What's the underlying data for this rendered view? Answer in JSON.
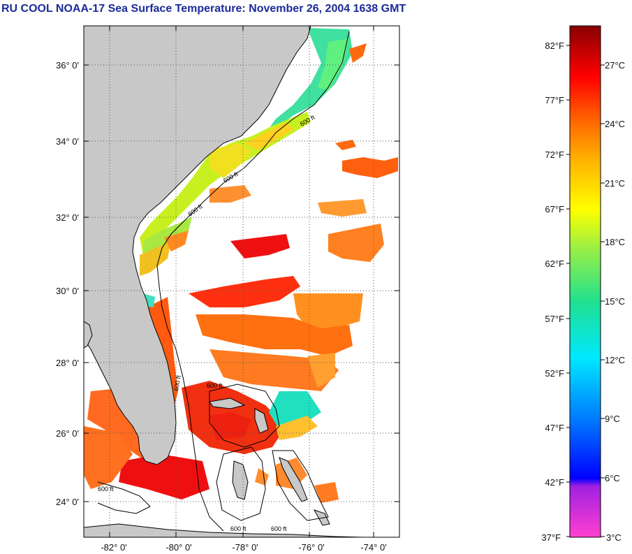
{
  "title": "RU COOL  NOAA-17  Sea Surface Temperature:  November 26, 2004 1638 GMT",
  "map": {
    "lat_labels": [
      "36° 0'",
      "34° 0'",
      "32° 0'",
      "30° 0'",
      "28° 0'",
      "26° 0'",
      "24° 0'"
    ],
    "lon_labels": [
      "-82° 0'",
      "-80° 0'",
      "-78° 0'",
      "-76° 0'",
      "-74° 0'"
    ],
    "contour_label": "600 ft",
    "colors": {
      "land": "#c8c8c8",
      "no_data": "#ffffff",
      "coast": "#000000"
    }
  },
  "colorbar": {
    "fahrenheit_labels": [
      "82°F",
      "77°F",
      "72°F",
      "67°F",
      "62°F",
      "57°F",
      "52°F",
      "47°F",
      "42°F",
      "37°F"
    ],
    "celsius_labels": [
      "27°C",
      "24°C",
      "21°C",
      "18°C",
      "15°C",
      "12°C",
      "9°C",
      "6°C",
      "3°C"
    ]
  }
}
